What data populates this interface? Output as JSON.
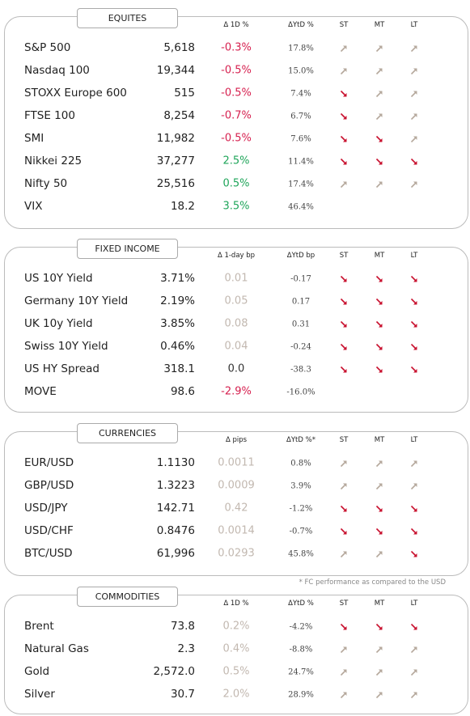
{
  "sections": [
    {
      "title": "EQUITES",
      "columns": [
        "Δ 1D %",
        "ΔYtD %",
        "ST",
        "MT",
        "LT"
      ],
      "rows": [
        {
          "name": "S&P 500",
          "value": "5,618",
          "change": "-0.3%",
          "change_color": "#d6204f",
          "ytd": "17.8%",
          "trend": [
            "up",
            "up",
            "up"
          ]
        },
        {
          "name": "Nasdaq 100",
          "value": "19,344",
          "change": "-0.5%",
          "change_color": "#d6204f",
          "ytd": "15.0%",
          "trend": [
            "up",
            "up",
            "up"
          ]
        },
        {
          "name": "STOXX Europe 600",
          "value": "515",
          "change": "-0.5%",
          "change_color": "#d6204f",
          "ytd": "7.4%",
          "trend": [
            "down",
            "up",
            "up"
          ]
        },
        {
          "name": "FTSE 100",
          "value": "8,254",
          "change": "-0.7%",
          "change_color": "#d6204f",
          "ytd": "6.7%",
          "trend": [
            "down",
            "up",
            "up"
          ]
        },
        {
          "name": "SMI",
          "value": "11,982",
          "change": "-0.5%",
          "change_color": "#d6204f",
          "ytd": "7.6%",
          "trend": [
            "down",
            "down",
            "up"
          ]
        },
        {
          "name": "Nikkei 225",
          "value": "37,277",
          "change": "2.5%",
          "change_color": "#1fa55a",
          "ytd": "11.4%",
          "trend": [
            "down",
            "down",
            "down"
          ]
        },
        {
          "name": "Nifty  50",
          "value": "25,516",
          "change": "0.5%",
          "change_color": "#1fa55a",
          "ytd": "17.4%",
          "trend": [
            "up",
            "up",
            "up"
          ]
        },
        {
          "name": "VIX",
          "value": "18.2",
          "change": "3.5%",
          "change_color": "#1fa55a",
          "ytd": "46.4%",
          "trend": [
            null,
            null,
            null
          ]
        }
      ]
    },
    {
      "title": "FIXED INCOME",
      "columns": [
        "Δ 1-day bp",
        "ΔYtD bp",
        "ST",
        "MT",
        "LT"
      ],
      "rows": [
        {
          "name": "US 10Y Yield",
          "value": "3.71%",
          "change": "0.01",
          "change_color": "#c2b8b0",
          "ytd": "-0.17",
          "trend": [
            "down",
            "down",
            "down"
          ]
        },
        {
          "name": "Germany 10Y Yield",
          "value": "2.19%",
          "change": "0.05",
          "change_color": "#c2b8b0",
          "ytd": "0.17",
          "trend": [
            "down",
            "down",
            "down"
          ]
        },
        {
          "name": "UK 10y Yield",
          "value": "3.85%",
          "change": "0.08",
          "change_color": "#c2b8b0",
          "ytd": "0.31",
          "trend": [
            "down",
            "down",
            "down"
          ]
        },
        {
          "name": "Swiss 10Y Yield",
          "value": "0.46%",
          "change": "0.04",
          "change_color": "#c2b8b0",
          "ytd": "-0.24",
          "trend": [
            "down",
            "down",
            "down"
          ]
        },
        {
          "name": "US HY Spread",
          "value": "318.1",
          "change": "0.0",
          "change_color": "#333333",
          "ytd": "-38.3",
          "trend": [
            "down",
            "down",
            "down"
          ]
        },
        {
          "name": "MOVE",
          "value": "98.6",
          "change": "-2.9%",
          "change_color": "#d6204f",
          "ytd": "-16.0%",
          "trend": [
            null,
            null,
            null
          ]
        }
      ]
    },
    {
      "title": "CURRENCIES",
      "columns": [
        "Δ pips",
        "ΔYtD %*",
        "ST",
        "MT",
        "LT"
      ],
      "rows": [
        {
          "name": "EUR/USD",
          "value": "1.1130",
          "change": "0.0011",
          "change_color": "#c2b8b0",
          "ytd": "0.8%",
          "trend": [
            "up",
            "up",
            "up"
          ]
        },
        {
          "name": "GBP/USD",
          "value": "1.3223",
          "change": "0.0009",
          "change_color": "#c2b8b0",
          "ytd": "3.9%",
          "trend": [
            "up",
            "up",
            "up"
          ]
        },
        {
          "name": "USD/JPY",
          "value": "142.71",
          "change": "0.42",
          "change_color": "#c2b8b0",
          "ytd": "-1.2%",
          "trend": [
            "down",
            "down",
            "down"
          ]
        },
        {
          "name": "USD/CHF",
          "value": "0.8476",
          "change": "0.0014",
          "change_color": "#c2b8b0",
          "ytd": "-0.7%",
          "trend": [
            "down",
            "down",
            "down"
          ]
        },
        {
          "name": "BTC/USD",
          "value": "61,996",
          "change": "0.0293",
          "change_color": "#c2b8b0",
          "ytd": "45.8%",
          "trend": [
            "up",
            "up",
            "down"
          ]
        }
      ],
      "footnote": "* FC performance as compared to the USD"
    },
    {
      "title": "COMMODITIES",
      "columns": [
        "Δ 1D %",
        "ΔYtD %",
        "ST",
        "MT",
        "LT"
      ],
      "rows": [
        {
          "name": "Brent",
          "value": "73.8",
          "change": "0.2%",
          "change_color": "#c2b8b0",
          "ytd": "-4.2%",
          "trend": [
            "down",
            "down",
            "down"
          ]
        },
        {
          "name": "Natural Gas",
          "value": "2.3",
          "change": "0.4%",
          "change_color": "#c2b8b0",
          "ytd": "-8.8%",
          "trend": [
            "up",
            "up",
            "up"
          ]
        },
        {
          "name": "Gold",
          "value": "2,572.0",
          "change": "0.5%",
          "change_color": "#c2b8b0",
          "ytd": "24.7%",
          "trend": [
            "up",
            "up",
            "up"
          ]
        },
        {
          "name": "Silver",
          "value": "30.7",
          "change": "2.0%",
          "change_color": "#c2b8b0",
          "ytd": "28.9%",
          "trend": [
            "up",
            "up",
            "up"
          ]
        }
      ]
    }
  ]
}
